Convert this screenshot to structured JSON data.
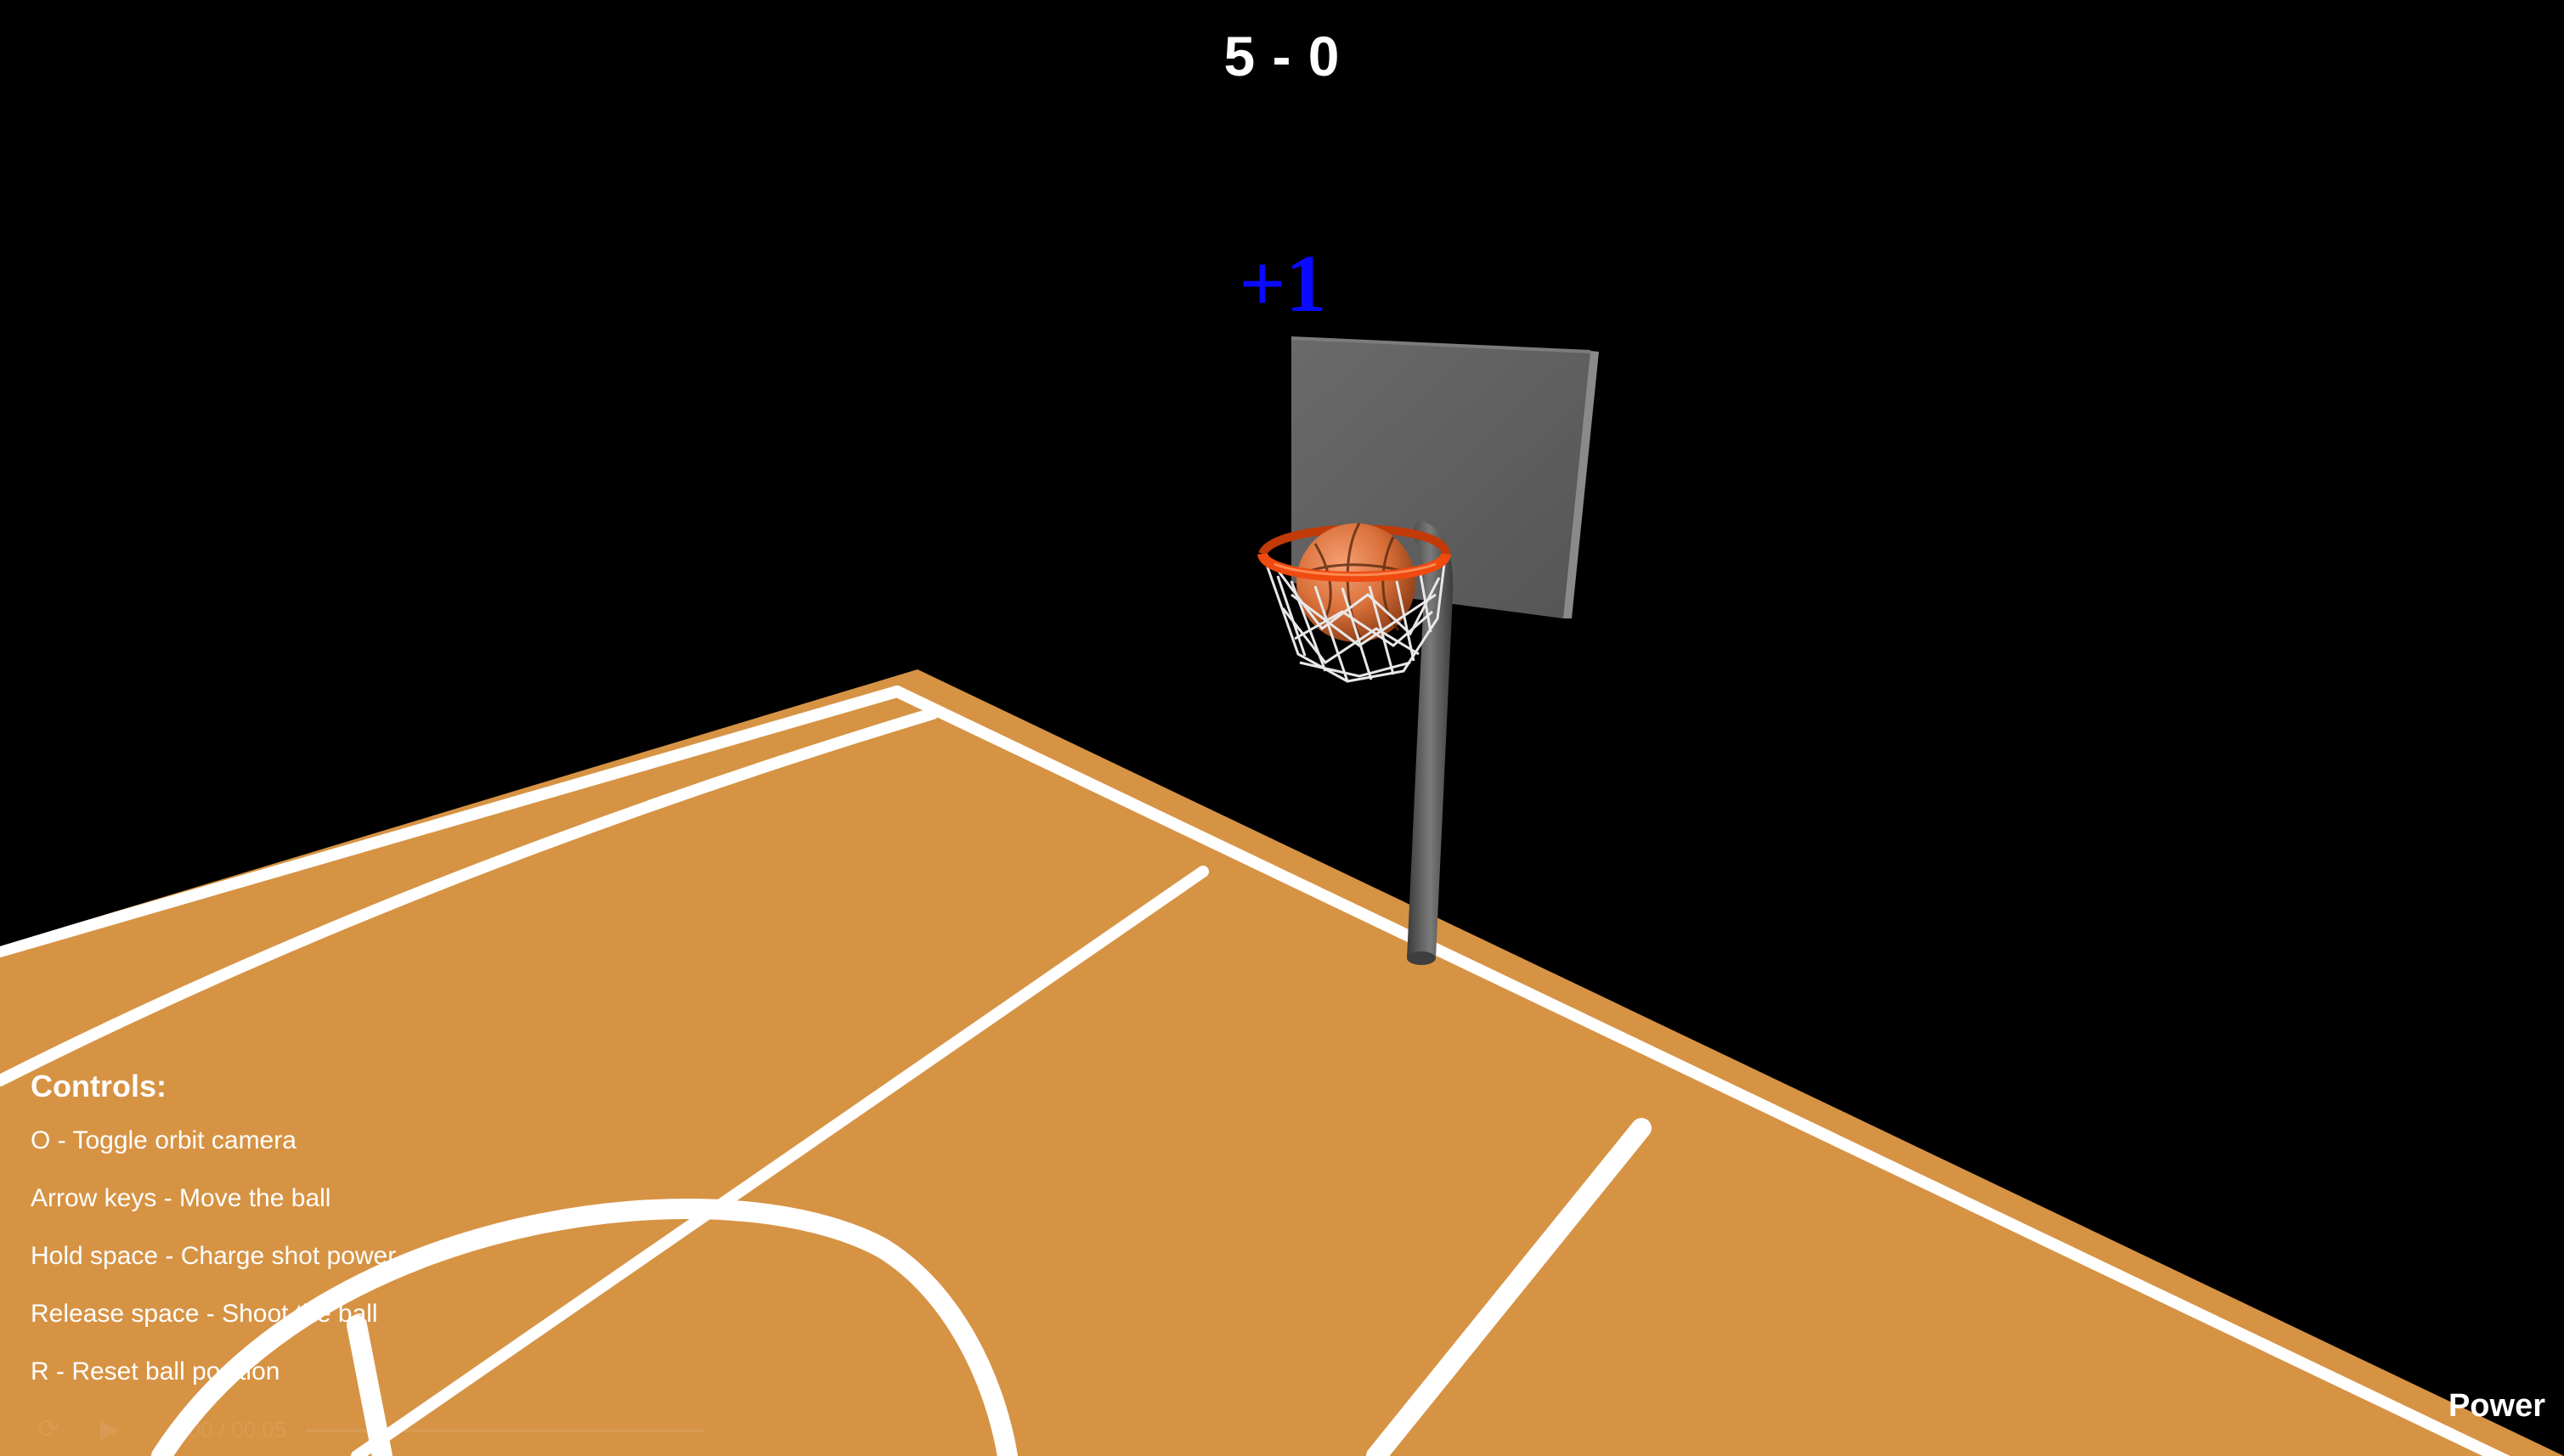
{
  "hud": {
    "score": "5 - 0",
    "score_popup": "+1",
    "power_label": "Power"
  },
  "controls": {
    "title": "Controls:",
    "items": [
      "O - Toggle orbit camera",
      "Arrow keys - Move the ball",
      "Hold space - Charge shot power",
      "Release space - Shoot the ball",
      "R - Reset ball position"
    ]
  },
  "video_bar": {
    "time": "0:00 / 00:05"
  },
  "colors": {
    "background": "#000000",
    "court": "#d69344",
    "court_lines": "#ffffff",
    "backboard": "#5e5e5e",
    "rim": "#ef4a10",
    "pole": "#5a5a5a",
    "ball": "#d9703a",
    "popup": "#0a0aff"
  },
  "icons": [
    "replay-icon",
    "play-icon",
    "volume-icon"
  ]
}
